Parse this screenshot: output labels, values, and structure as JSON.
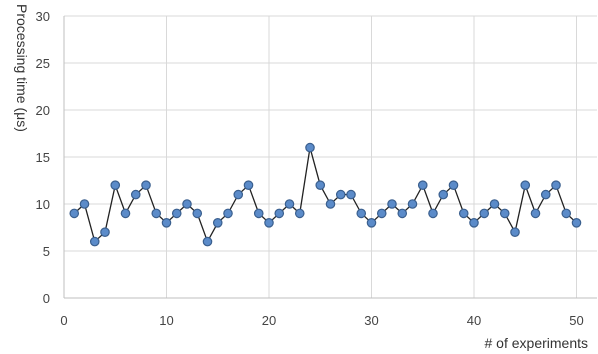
{
  "chart_data": {
    "type": "line",
    "title": "",
    "xlabel": "# of experiments",
    "ylabel": "Processing time (μs)",
    "xlim": [
      0,
      52
    ],
    "ylim": [
      0,
      30
    ],
    "xticks": [
      0,
      10,
      20,
      30,
      40,
      50
    ],
    "yticks": [
      0,
      5,
      10,
      15,
      20,
      25,
      30
    ],
    "grid": true,
    "line_color": "#222222",
    "marker_fill": "#5b8bc9",
    "marker_stroke": "#3a5f8e",
    "grid_color": "#d9d9d9",
    "series": [
      {
        "x": [
          1,
          2,
          3,
          4,
          5,
          6,
          7,
          8,
          9,
          10,
          11,
          12,
          13,
          14,
          15,
          16,
          17,
          18,
          19,
          20,
          21,
          22,
          23,
          24,
          25,
          26,
          27,
          28,
          29,
          30,
          31,
          32,
          33,
          34,
          35,
          36,
          37,
          38,
          39,
          40,
          41,
          42,
          43,
          44,
          45,
          46,
          47,
          48,
          49,
          50
        ],
        "values": [
          9,
          10,
          6,
          7,
          12,
          9,
          11,
          12,
          9,
          8,
          9,
          10,
          9,
          6,
          8,
          9,
          11,
          12,
          9,
          8,
          9,
          10,
          9,
          16,
          12,
          10,
          11,
          11,
          9,
          8,
          9,
          10,
          9,
          10,
          12,
          9,
          11,
          12,
          9,
          8,
          9,
          10,
          9,
          7,
          12,
          9,
          11,
          12,
          9,
          8
        ]
      }
    ]
  }
}
